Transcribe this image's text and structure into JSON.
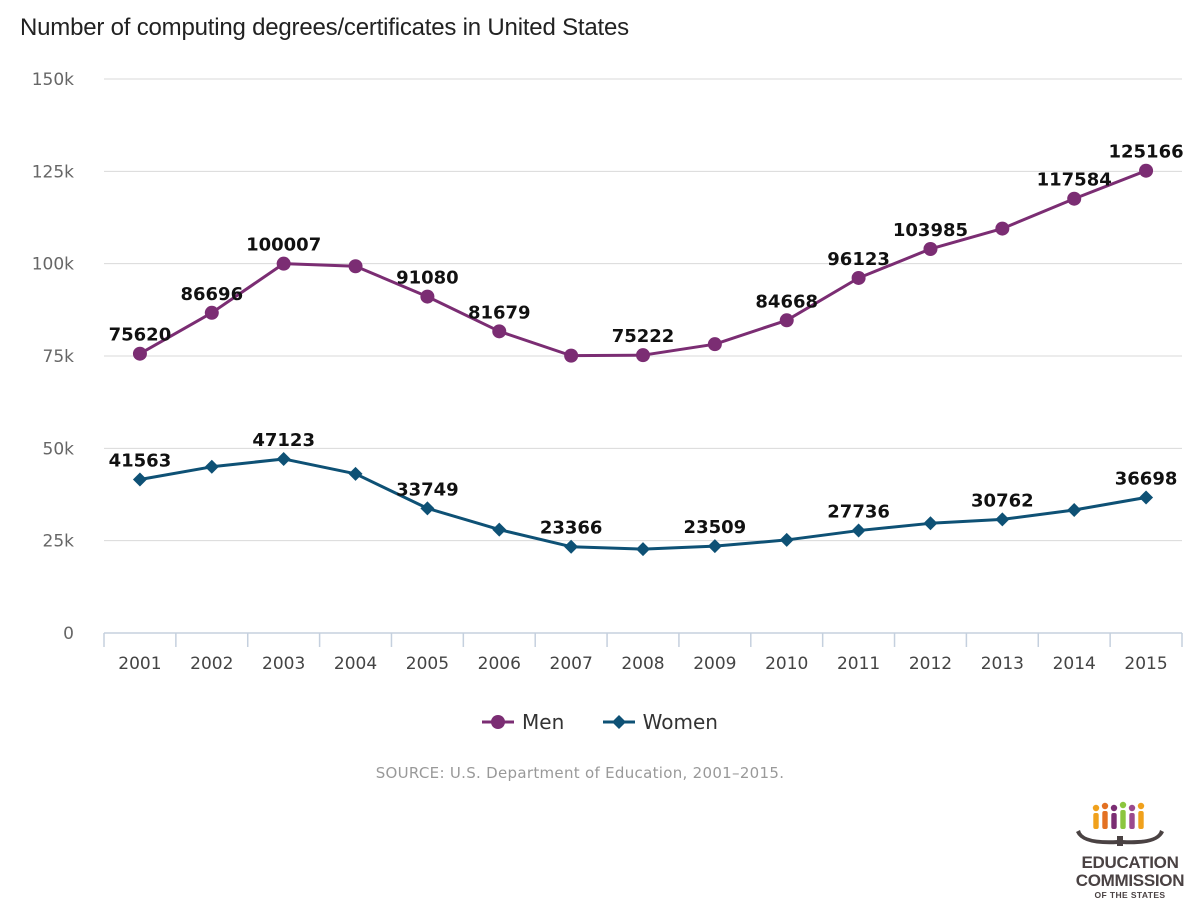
{
  "title": "Number of computing degrees/certificates in United States",
  "source": "SOURCE: U.S. Department of Education, 2001–2015.",
  "logo": {
    "line1": "EDUCATION",
    "line2": "COMMISSION",
    "line3": "OF THE STATES"
  },
  "colors": {
    "men": "#7b2d73",
    "women": "#0e5175",
    "grid": "#d9d9d9",
    "axis": "#c5d0de"
  },
  "chart_data": {
    "type": "line",
    "title": "Number of computing degrees/certificates in United States",
    "categories": [
      "2001",
      "2002",
      "2003",
      "2004",
      "2005",
      "2006",
      "2007",
      "2008",
      "2009",
      "2010",
      "2011",
      "2012",
      "2013",
      "2014",
      "2015"
    ],
    "y_ticks": [
      "0",
      "25k",
      "50k",
      "75k",
      "100k",
      "125k",
      "150k"
    ],
    "ylim": [
      0,
      150000
    ],
    "grid": true,
    "legend_position": "bottom",
    "series": [
      {
        "name": "Men",
        "marker": "circle",
        "values": [
          75620,
          86696,
          100007,
          99300,
          91080,
          81679,
          75100,
          75222,
          78200,
          84668,
          96123,
          103985,
          109500,
          117584,
          125166
        ],
        "labels": [
          "75620",
          "86696",
          "100007",
          null,
          "91080",
          "81679",
          null,
          "75222",
          null,
          "84668",
          "96123",
          "103985",
          null,
          "117584",
          "125166"
        ]
      },
      {
        "name": "Women",
        "marker": "diamond",
        "values": [
          41563,
          45000,
          47123,
          43100,
          33749,
          28000,
          23366,
          22700,
          23509,
          25200,
          27736,
          29700,
          30762,
          33300,
          36698
        ],
        "labels": [
          "41563",
          null,
          "47123",
          null,
          "33749",
          null,
          "23366",
          null,
          "23509",
          null,
          "27736",
          null,
          "30762",
          null,
          "36698"
        ]
      }
    ]
  }
}
